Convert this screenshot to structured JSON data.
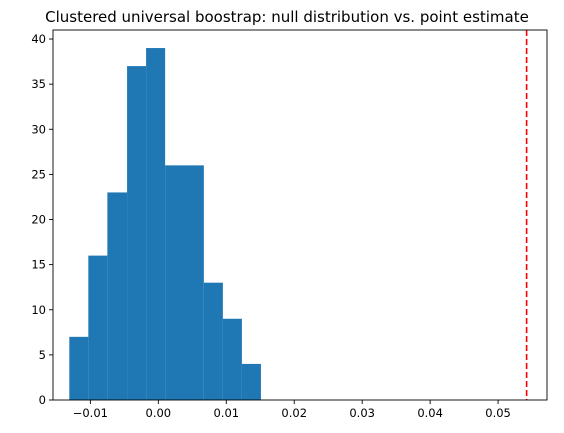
{
  "chart_data": {
    "type": "bar",
    "title": "Clustered universal boostrap: null distribution vs. point estimate",
    "xlabel": "",
    "ylabel": "",
    "xlim": [
      -0.0155,
      0.0572
    ],
    "ylim": [
      0,
      41
    ],
    "x_ticks": [
      -0.01,
      0.0,
      0.01,
      0.02,
      0.03,
      0.04,
      0.05
    ],
    "x_tick_labels": [
      "−0.01",
      "0.00",
      "0.01",
      "0.02",
      "0.03",
      "0.04",
      "0.05"
    ],
    "y_ticks": [
      0,
      5,
      10,
      15,
      20,
      25,
      30,
      35,
      40
    ],
    "y_tick_labels": [
      "0",
      "5",
      "10",
      "15",
      "20",
      "25",
      "30",
      "35",
      "40"
    ],
    "bins": [
      {
        "x0": -0.0131,
        "x1": -0.0103,
        "count": 7
      },
      {
        "x0": -0.0103,
        "x1": -0.0075,
        "count": 16
      },
      {
        "x0": -0.0075,
        "x1": -0.0046,
        "count": 23
      },
      {
        "x0": -0.0046,
        "x1": -0.0018,
        "count": 37
      },
      {
        "x0": -0.0018,
        "x1": 0.001,
        "count": 39
      },
      {
        "x0": 0.001,
        "x1": 0.0067,
        "count": 26
      },
      {
        "x0": 0.0067,
        "x1": 0.0095,
        "count": 13
      },
      {
        "x0": 0.0095,
        "x1": 0.0123,
        "count": 9
      },
      {
        "x0": 0.0123,
        "x1": 0.0151,
        "count": 4
      }
    ],
    "bar_color": "#1f77b4",
    "reference_line": {
      "x": 0.0542,
      "color": "#ff0000",
      "style": "dashed"
    },
    "grid": false,
    "legend": "none"
  }
}
